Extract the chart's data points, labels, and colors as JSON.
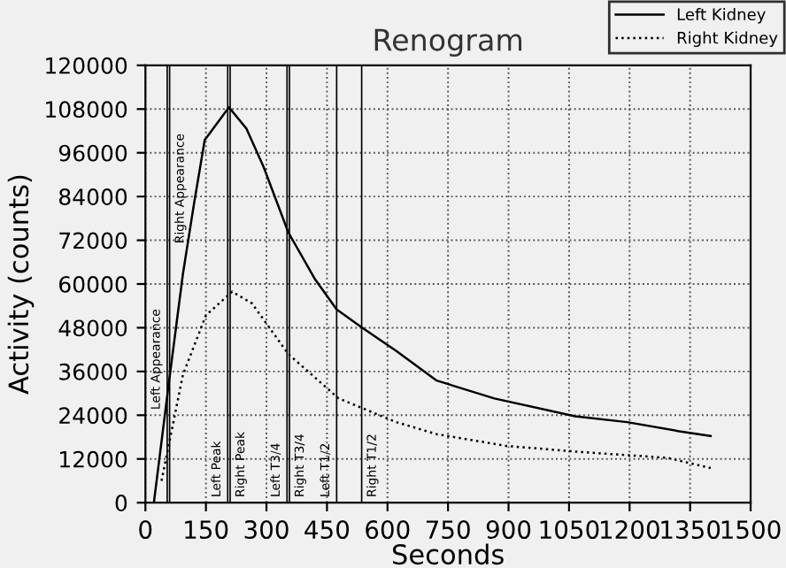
{
  "chart_data": {
    "type": "line",
    "title": "Renogram",
    "xlabel": "Seconds",
    "ylabel": "Activity (counts)",
    "xlim": [
      0,
      1500
    ],
    "xticks": [
      0,
      150,
      300,
      450,
      600,
      750,
      900,
      1050,
      1200,
      1350,
      1500
    ],
    "ylim": [
      0,
      120000
    ],
    "yticks": [
      0,
      12000,
      24000,
      36000,
      48000,
      60000,
      72000,
      84000,
      96000,
      108000,
      120000
    ],
    "grid": true,
    "legend": "top right",
    "marker": "none",
    "series": [
      {
        "name": "Left Kidney",
        "color": "#000000",
        "line_style": "solid",
        "x": [
          21,
          57,
          93,
          121,
          147,
          207,
          250,
          293,
          354,
          421,
          474,
          536,
          622,
          722,
          865,
          1065,
          1194,
          1323,
          1401
        ],
        "values": [
          0,
          31900,
          62800,
          82400,
          99500,
          108500,
          102700,
          92100,
          74200,
          61200,
          53000,
          48100,
          41600,
          33500,
          28600,
          23700,
          22100,
          19600,
          18300
        ]
      },
      {
        "name": "Right Kidney",
        "color": "#000000",
        "line_style": "dotted",
        "x": [
          40,
          50,
          93,
          150,
          215,
          264,
          354,
          479,
          622,
          722,
          893,
          1079,
          1294,
          1401
        ],
        "values": [
          6000,
          11500,
          35100,
          51400,
          57900,
          54700,
          40800,
          28600,
          22100,
          18800,
          15600,
          13900,
          12300,
          9500
        ]
      }
    ],
    "ref_lines": [
      {
        "axis": "x",
        "value": 54,
        "label": "Left Appearance",
        "color": "#000000"
      },
      {
        "axis": "x",
        "value": 60,
        "label": "Right Appearance",
        "color": "#000000"
      },
      {
        "axis": "x",
        "value": 204,
        "label": "Left Peak",
        "color": "#000000"
      },
      {
        "axis": "x",
        "value": 210,
        "label": "Right Peak",
        "color": "#000000"
      },
      {
        "axis": "x",
        "value": 351,
        "label": "Left T3/4",
        "color": "#000000"
      },
      {
        "axis": "x",
        "value": 357,
        "label": "Right T3/4",
        "color": "#000000"
      },
      {
        "axis": "x",
        "value": 474,
        "label": "Left T1/2",
        "color": "#000000"
      },
      {
        "axis": "x",
        "value": 536,
        "label": "Right T1/2",
        "color": "#000000"
      }
    ]
  }
}
